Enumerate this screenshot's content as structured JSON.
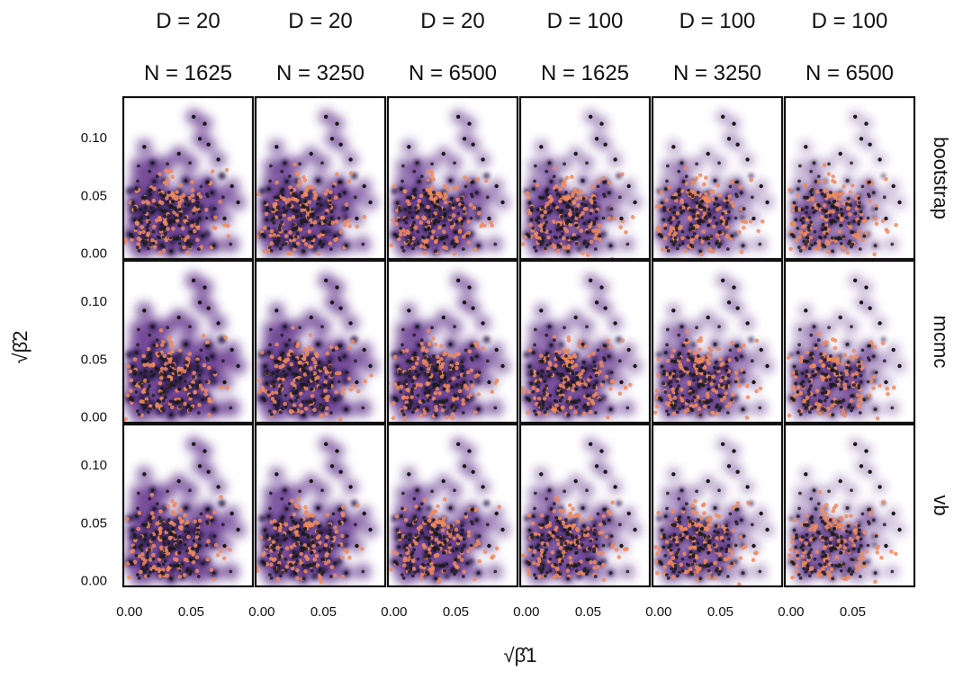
{
  "chart_data": {
    "type": "scatter",
    "layout": "facet-grid",
    "columns": [
      {
        "d_label": "D = 20",
        "n_label": "N = 1625"
      },
      {
        "d_label": "D = 20",
        "n_label": "N = 3250"
      },
      {
        "d_label": "D = 20",
        "n_label": "N = 6500"
      },
      {
        "d_label": "D = 100",
        "n_label": "N = 1625"
      },
      {
        "d_label": "D = 100",
        "n_label": "N = 3250"
      },
      {
        "d_label": "D = 100",
        "n_label": "N = 6500"
      }
    ],
    "rows": [
      "bootstrap",
      "mcmc",
      "vb"
    ],
    "xlabel": "√β̂1",
    "ylabel": "√β̂2",
    "xlim": [
      -0.005,
      0.1
    ],
    "ylim": [
      -0.005,
      0.135
    ],
    "x_ticks": [
      {
        "value": 0.0,
        "label": "0.00"
      },
      {
        "value": 0.05,
        "label": "0.05"
      }
    ],
    "y_ticks": [
      {
        "value": 0.0,
        "label": "0.00"
      },
      {
        "value": 0.05,
        "label": "0.05"
      },
      {
        "value": 0.1,
        "label": "0.10"
      }
    ],
    "grid": false,
    "colors": {
      "density_dark": "#2d1b4e",
      "density_mid": "#5b2a86",
      "estimate_points": "#f08a5d",
      "true_points": "#1a1a1a",
      "frame": "#111111"
    },
    "notes": "Each panel overlays a density of estimated points (purple, orange highlights) with true values (black dots); estimates lie roughly within x 0.00–0.09, y 0.00–0.12."
  }
}
